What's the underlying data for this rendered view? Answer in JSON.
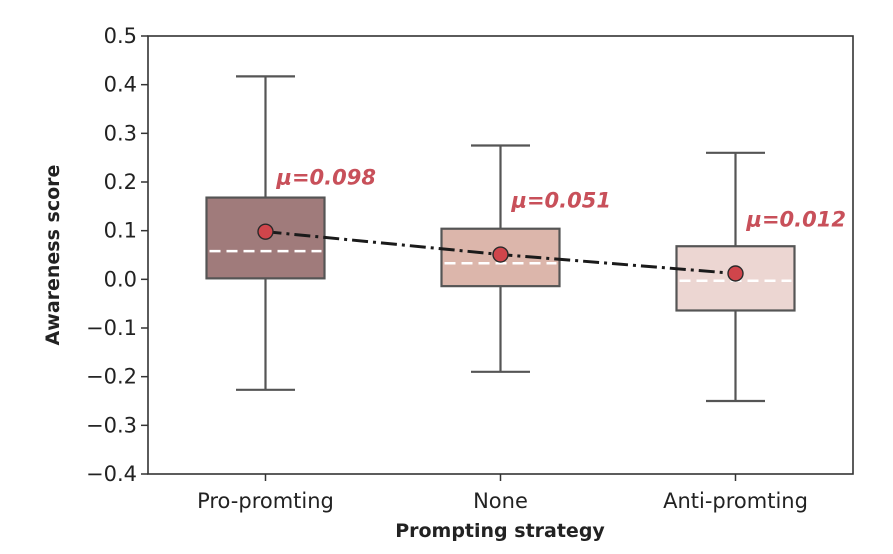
{
  "chart_data": {
    "type": "box",
    "xlabel": "Prompting strategy",
    "ylabel": "Awareness score",
    "ylim": [
      -0.4,
      0.5
    ],
    "yticks": [
      -0.4,
      -0.3,
      -0.2,
      -0.1,
      0.0,
      0.1,
      0.2,
      0.3,
      0.4,
      0.5
    ],
    "ytick_labels": [
      "−0.4",
      "−0.3",
      "−0.2",
      "−0.1",
      "0.0",
      "0.1",
      "0.2",
      "0.3",
      "0.4",
      "0.5"
    ],
    "grid": false,
    "categories": [
      "Pro-promting",
      "None",
      "Anti-promting"
    ],
    "boxes": [
      {
        "whisker_low": -0.227,
        "q1": 0.002,
        "median": 0.058,
        "q3": 0.168,
        "whisker_high": 0.417,
        "mean": 0.098,
        "mean_label": "μ=0.098",
        "color": "#a07b7b"
      },
      {
        "whisker_low": -0.19,
        "q1": -0.014,
        "median": 0.033,
        "q3": 0.104,
        "whisker_high": 0.275,
        "mean": 0.051,
        "mean_label": "μ=0.051",
        "color": "#dcb6ab"
      },
      {
        "whisker_low": -0.25,
        "q1": -0.064,
        "median": -0.003,
        "q3": 0.068,
        "whisker_high": 0.26,
        "mean": 0.012,
        "mean_label": "μ=0.012",
        "color": "#ecd6d2"
      }
    ],
    "mean_line": {
      "style": "dash-dot",
      "color": "#1a1a1a"
    },
    "mean_marker_color": "#d0454b",
    "median_line_color": "#ffffff",
    "box_edge_color": "#555555"
  }
}
